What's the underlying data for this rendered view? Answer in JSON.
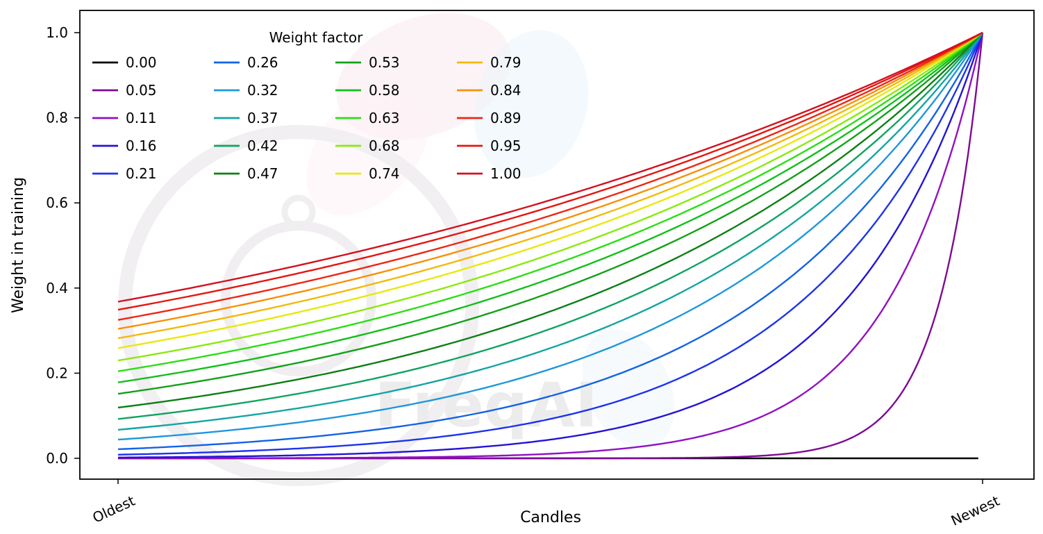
{
  "figure": {
    "background": "#ffffff",
    "watermark_text": "FreqAI"
  },
  "chart_data": {
    "type": "line",
    "title": "",
    "xlabel": "Candles",
    "ylabel": "Weight in training",
    "x_tick_labels": [
      "Oldest",
      "Newest"
    ],
    "x_tick_positions": [
      0,
      1
    ],
    "y_tick_labels": [
      "0.0",
      "0.2",
      "0.4",
      "0.6",
      "0.8",
      "1.0"
    ],
    "y_tick_values": [
      0,
      0.2,
      0.4,
      0.6,
      0.8,
      1.0
    ],
    "xlim_data": [
      0,
      1
    ],
    "ylim_data": [
      0,
      1
    ],
    "grid": false,
    "legend": {
      "title": "Weight factor",
      "position": "upper-left",
      "columns": 4,
      "order": "column-major"
    },
    "formula": "weight(x) = exp(-(1 - x) / factor) for factor > 0, x in [0,1] from oldest to newest candle; factor 0.00 gives weight 0 for every candle except the newest",
    "sample_x": [
      0,
      0.2,
      0.4,
      0.6,
      0.8,
      1
    ],
    "series": [
      {
        "label": "0.00",
        "factor": 0.0,
        "color": "#000000",
        "values": [
          0,
          0,
          0,
          0,
          0,
          null
        ]
      },
      {
        "label": "0.05",
        "factor": 0.05,
        "color": "#7d0a93",
        "values": [
          0,
          0,
          0,
          0.0003,
          0.0183,
          1
        ]
      },
      {
        "label": "0.11",
        "factor": 0.11,
        "color": "#9011c4",
        "values": [
          0.0001,
          0.0007,
          0.0043,
          0.0263,
          0.1624,
          1
        ]
      },
      {
        "label": "0.16",
        "factor": 0.16,
        "color": "#2413d6",
        "values": [
          0.0019,
          0.0067,
          0.0235,
          0.0821,
          0.2865,
          1
        ]
      },
      {
        "label": "0.21",
        "factor": 0.21,
        "color": "#1c33ee",
        "values": [
          0.0086,
          0.0222,
          0.0573,
          0.1489,
          0.3861,
          1
        ]
      },
      {
        "label": "0.26",
        "factor": 0.26,
        "color": "#1263e6",
        "values": [
          0.0213,
          0.0461,
          0.0994,
          0.2144,
          0.4634,
          1
        ]
      },
      {
        "label": "0.32",
        "factor": 0.32,
        "color": "#1e97dc",
        "values": [
          0.0439,
          0.0821,
          0.1534,
          0.2865,
          0.5353,
          1
        ]
      },
      {
        "label": "0.37",
        "factor": 0.37,
        "color": "#14a4a4",
        "values": [
          0.0672,
          0.1153,
          0.1979,
          0.3396,
          0.5827,
          1
        ]
      },
      {
        "label": "0.42",
        "factor": 0.42,
        "color": "#0fa361",
        "values": [
          0.0924,
          0.1488,
          0.2396,
          0.3861,
          0.6213,
          1
        ]
      },
      {
        "label": "0.47",
        "factor": 0.47,
        "color": "#0d7f14",
        "values": [
          0.1191,
          0.1823,
          0.279,
          0.4269,
          0.6534,
          1
        ]
      },
      {
        "label": "0.53",
        "factor": 0.53,
        "color": "#12a117",
        "values": [
          0.1516,
          0.221,
          0.3224,
          0.4701,
          0.6857,
          1
        ]
      },
      {
        "label": "0.58",
        "factor": 0.58,
        "color": "#10c019",
        "values": [
          0.1783,
          0.2518,
          0.3554,
          0.5018,
          0.7084,
          1
        ]
      },
      {
        "label": "0.63",
        "factor": 0.63,
        "color": "#2bdf14",
        "values": [
          0.2044,
          0.2809,
          0.3858,
          0.53,
          0.728,
          1
        ]
      },
      {
        "label": "0.68",
        "factor": 0.68,
        "color": "#8ae90f",
        "values": [
          0.2298,
          0.3084,
          0.4138,
          0.5553,
          0.7452,
          1
        ]
      },
      {
        "label": "0.74",
        "factor": 0.74,
        "color": "#e7e90c",
        "values": [
          0.2589,
          0.3392,
          0.4445,
          0.5825,
          0.7632,
          1
        ]
      },
      {
        "label": "0.79",
        "factor": 0.79,
        "color": "#f3b90b",
        "values": [
          0.282,
          0.3632,
          0.4679,
          0.6027,
          0.7763,
          1
        ]
      },
      {
        "label": "0.84",
        "factor": 0.84,
        "color": "#f8900a",
        "values": [
          0.304,
          0.3858,
          0.4895,
          0.6212,
          0.7881,
          1
        ]
      },
      {
        "label": "0.89",
        "factor": 0.89,
        "color": "#ee2613",
        "values": [
          0.3251,
          0.407,
          0.5096,
          0.638,
          0.7988,
          1
        ]
      },
      {
        "label": "0.95",
        "factor": 0.95,
        "color": "#e6150f",
        "values": [
          0.349,
          0.4308,
          0.5317,
          0.6563,
          0.8102,
          1
        ]
      },
      {
        "label": "1.00",
        "factor": 1.0,
        "color": "#d2121f",
        "values": [
          0.3679,
          0.4493,
          0.5488,
          0.6703,
          0.8187,
          1
        ]
      }
    ]
  }
}
